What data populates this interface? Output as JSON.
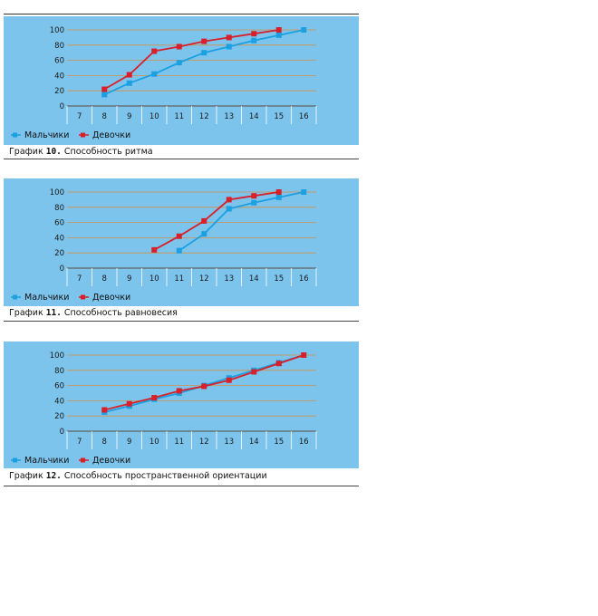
{
  "legend": {
    "boys": "Мальчики",
    "girls": "Девочки"
  },
  "colors": {
    "panel_bg": "#7cc4ec",
    "boys": "#1ba0e2",
    "girls": "#d8202a",
    "grid": "#d4904a"
  },
  "chart_data": [
    {
      "type": "line",
      "caption_prefix": "График",
      "caption_num": "10.",
      "caption_text": "Способность ритма",
      "x_ticks": [
        "7",
        "8",
        "9",
        "10",
        "11",
        "12",
        "13",
        "14",
        "15",
        "16"
      ],
      "y_ticks": [
        "0",
        "20",
        "40",
        "60",
        "80",
        "100"
      ],
      "xlim": [
        7,
        16
      ],
      "ylim": [
        0,
        100
      ],
      "series": [
        {
          "name": "Мальчики",
          "x": [
            8,
            9,
            10,
            11,
            12,
            13,
            14,
            15,
            16
          ],
          "y": [
            15,
            30,
            42,
            57,
            70,
            78,
            86,
            93,
            100
          ]
        },
        {
          "name": "Девочки",
          "x": [
            8,
            9,
            10,
            11,
            12,
            13,
            14,
            15
          ],
          "y": [
            22,
            41,
            72,
            78,
            85,
            90,
            95,
            100
          ]
        }
      ]
    },
    {
      "type": "line",
      "caption_prefix": "График",
      "caption_num": "11.",
      "caption_text": "Способность равновесия",
      "x_ticks": [
        "7",
        "8",
        "9",
        "10",
        "11",
        "12",
        "13",
        "14",
        "15",
        "16"
      ],
      "y_ticks": [
        "0",
        "20",
        "40",
        "60",
        "80",
        "100"
      ],
      "xlim": [
        7,
        16
      ],
      "ylim": [
        0,
        100
      ],
      "series": [
        {
          "name": "Мальчики",
          "x": [
            11,
            12,
            13,
            14,
            15,
            16
          ],
          "y": [
            23,
            45,
            78,
            86,
            93,
            100
          ]
        },
        {
          "name": "Девочки",
          "x": [
            10,
            11,
            12,
            13,
            14,
            15
          ],
          "y": [
            24,
            42,
            62,
            90,
            95,
            100
          ]
        }
      ]
    },
    {
      "type": "line",
      "caption_prefix": "График",
      "caption_num": "12.",
      "caption_text": "Способность пространственной ориентации",
      "x_ticks": [
        "7",
        "8",
        "9",
        "10",
        "11",
        "12",
        "13",
        "14",
        "15",
        "16"
      ],
      "y_ticks": [
        "0",
        "20",
        "40",
        "60",
        "80",
        "100"
      ],
      "xlim": [
        7,
        16
      ],
      "ylim": [
        0,
        100
      ],
      "series": [
        {
          "name": "Мальчики",
          "x": [
            8,
            9,
            10,
            11,
            12,
            13,
            14,
            15,
            16
          ],
          "y": [
            25,
            33,
            42,
            50,
            60,
            70,
            80,
            90,
            100
          ]
        },
        {
          "name": "Девочки",
          "x": [
            8,
            9,
            10,
            11,
            12,
            13,
            14,
            15,
            16
          ],
          "y": [
            28,
            36,
            44,
            53,
            59,
            67,
            78,
            89,
            100
          ]
        }
      ]
    }
  ]
}
